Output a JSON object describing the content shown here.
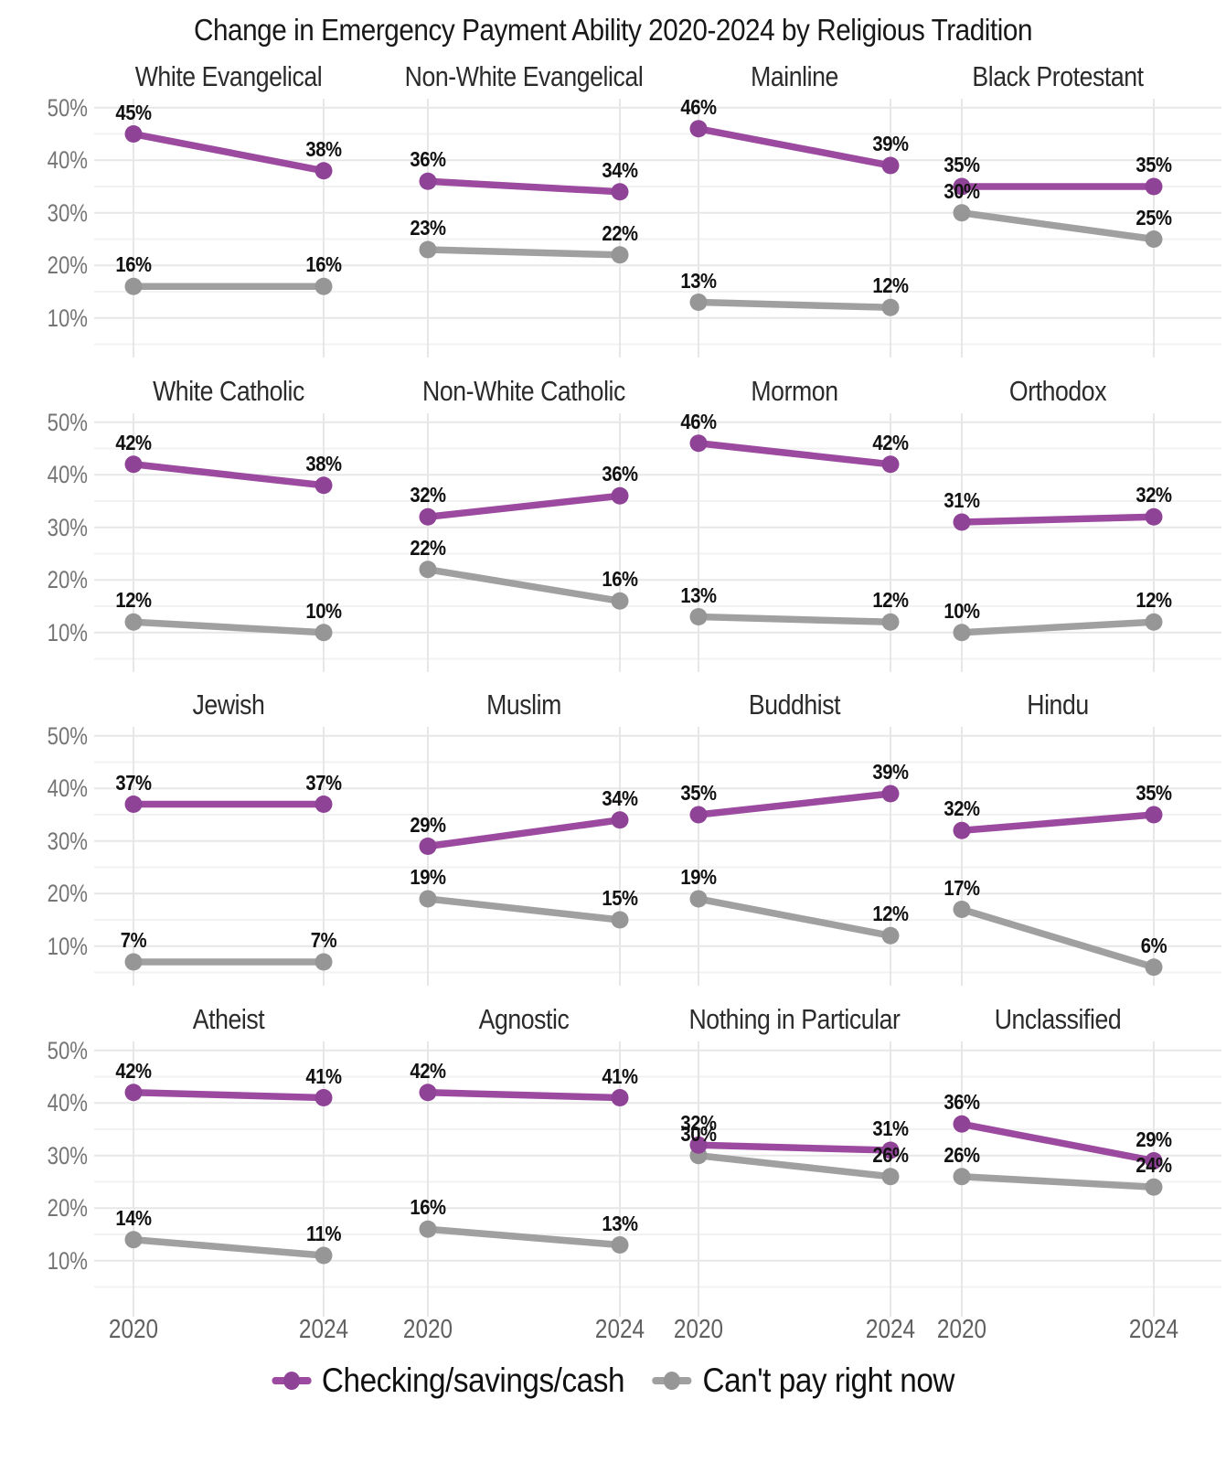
{
  "title": "Change in Emergency Payment Ability 2020-2024 by Religious Tradition",
  "chart_data": {
    "type": "line",
    "title": "Change in Emergency Payment Ability 2020-2024 by Religious Tradition",
    "x": [
      "2020",
      "2024"
    ],
    "y_axis": {
      "ticks": [
        50,
        40,
        30,
        20,
        10
      ],
      "tick_suffix": "%",
      "range_top": 51.7,
      "range_bottom": 2.5
    },
    "grid": {
      "major": [
        10,
        20,
        30,
        40,
        50
      ],
      "minor": [
        5,
        15,
        25,
        35,
        45
      ],
      "vertical_at_x": true
    },
    "colors": {
      "checking": "#9b4aa0",
      "checking_dot": "#8f4396",
      "cant_pay": "#a0a0a0",
      "cant_pay_dot": "#969696",
      "grid_major": "#e7e7e7",
      "grid_minor": "#f2f2f2",
      "axis_text": "#757575",
      "facet_title_text": "#2b2b2b",
      "value_label_text": "#111111",
      "background": "#ffffff"
    },
    "legend": [
      {
        "key": "checking",
        "label": "Checking/savings/cash",
        "color": "#9b4aa0",
        "dot_color": "#8f4396"
      },
      {
        "key": "cant_pay",
        "label": "Can't pay right now",
        "color": "#a0a0a0",
        "dot_color": "#969696"
      }
    ],
    "legend_position": "bottom-center",
    "label_format": "{v}%",
    "facets": [
      {
        "title": "White Evangelical",
        "series": [
          {
            "key": "checking",
            "values": [
              45,
              38
            ]
          },
          {
            "key": "cant_pay",
            "values": [
              16,
              16
            ]
          }
        ]
      },
      {
        "title": "Non-White Evangelical",
        "series": [
          {
            "key": "checking",
            "values": [
              36,
              34
            ]
          },
          {
            "key": "cant_pay",
            "values": [
              23,
              22
            ]
          }
        ]
      },
      {
        "title": "Mainline",
        "series": [
          {
            "key": "checking",
            "values": [
              46,
              39
            ]
          },
          {
            "key": "cant_pay",
            "values": [
              13,
              12
            ]
          }
        ]
      },
      {
        "title": "Black Protestant",
        "series": [
          {
            "key": "checking",
            "values": [
              35,
              35
            ]
          },
          {
            "key": "cant_pay",
            "values": [
              30,
              25
            ]
          }
        ]
      },
      {
        "title": "White Catholic",
        "series": [
          {
            "key": "checking",
            "values": [
              42,
              38
            ]
          },
          {
            "key": "cant_pay",
            "values": [
              12,
              10
            ]
          }
        ]
      },
      {
        "title": "Non-White Catholic",
        "series": [
          {
            "key": "checking",
            "values": [
              32,
              36
            ]
          },
          {
            "key": "cant_pay",
            "values": [
              22,
              16
            ]
          }
        ]
      },
      {
        "title": "Mormon",
        "series": [
          {
            "key": "checking",
            "values": [
              46,
              42
            ]
          },
          {
            "key": "cant_pay",
            "values": [
              13,
              12
            ]
          }
        ]
      },
      {
        "title": "Orthodox",
        "series": [
          {
            "key": "checking",
            "values": [
              31,
              32
            ]
          },
          {
            "key": "cant_pay",
            "values": [
              10,
              12
            ]
          }
        ]
      },
      {
        "title": "Jewish",
        "series": [
          {
            "key": "checking",
            "values": [
              37,
              37
            ]
          },
          {
            "key": "cant_pay",
            "values": [
              7,
              7
            ]
          }
        ]
      },
      {
        "title": "Muslim",
        "series": [
          {
            "key": "checking",
            "values": [
              29,
              34
            ]
          },
          {
            "key": "cant_pay",
            "values": [
              19,
              15
            ]
          }
        ]
      },
      {
        "title": "Buddhist",
        "series": [
          {
            "key": "checking",
            "values": [
              35,
              39
            ]
          },
          {
            "key": "cant_pay",
            "values": [
              19,
              12
            ]
          }
        ]
      },
      {
        "title": "Hindu",
        "series": [
          {
            "key": "checking",
            "values": [
              32,
              35
            ]
          },
          {
            "key": "cant_pay",
            "values": [
              17,
              6
            ]
          }
        ]
      },
      {
        "title": "Atheist",
        "series": [
          {
            "key": "checking",
            "values": [
              42,
              41
            ]
          },
          {
            "key": "cant_pay",
            "values": [
              14,
              11
            ]
          }
        ]
      },
      {
        "title": "Agnostic",
        "series": [
          {
            "key": "checking",
            "values": [
              42,
              41
            ]
          },
          {
            "key": "cant_pay",
            "values": [
              16,
              13
            ]
          }
        ]
      },
      {
        "title": "Nothing in Particular",
        "series": [
          {
            "key": "checking",
            "values": [
              32,
              31
            ]
          },
          {
            "key": "cant_pay",
            "values": [
              30,
              26
            ]
          }
        ]
      },
      {
        "title": "Unclassified",
        "series": [
          {
            "key": "checking",
            "values": [
              36,
              29
            ]
          },
          {
            "key": "cant_pay",
            "values": [
              26,
              24
            ]
          }
        ]
      }
    ]
  }
}
